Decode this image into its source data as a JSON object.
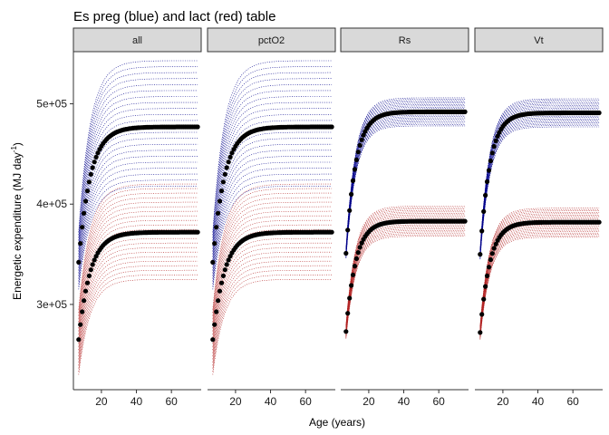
{
  "title": "Es preg (blue) and lact (red) table",
  "xlabel": "Age (years)",
  "ylabel_main": "Energetic expenditure (MJ day",
  "ylabel_sup": "-1",
  "ylabel_end": ")",
  "panels": [
    "all",
    "pctO2",
    "Rs",
    "Vt"
  ],
  "colors": {
    "preg_band": "#00008b",
    "lact_band": "#b22222",
    "points": "#000000"
  },
  "chart_data": {
    "type": "scatter",
    "title": "Es preg (blue) and lact (red) table",
    "xlabel": "Age (years)",
    "ylabel": "Energetic expenditure (MJ day-1)",
    "facets": [
      "all",
      "pctO2",
      "Rs",
      "Vt"
    ],
    "xlim": [
      4,
      77
    ],
    "ylim": [
      215000,
      552000
    ],
    "x_ticks": [
      20,
      40,
      60
    ],
    "y_ticks": [
      300000,
      400000,
      500000
    ],
    "y_tick_labels": [
      "3e+05",
      "4e+05",
      "5e+05"
    ],
    "x_range": [
      7,
      75
    ],
    "grid": false,
    "series": [
      {
        "name": "preg",
        "facet": "all",
        "start": 342000,
        "asymptote": 477000,
        "k": 0.15,
        "band_start": [
          315000,
          372000
        ],
        "band_end": [
          418000,
          543000
        ]
      },
      {
        "name": "lact",
        "facet": "all",
        "start": 265000,
        "asymptote": 372000,
        "k": 0.15,
        "band_start": [
          230000,
          295000
        ],
        "band_end": [
          325000,
          420000
        ]
      },
      {
        "name": "preg",
        "facet": "pctO2",
        "start": 342000,
        "asymptote": 477000,
        "k": 0.15,
        "band_start": [
          315000,
          372000
        ],
        "band_end": [
          418000,
          543000
        ]
      },
      {
        "name": "lact",
        "facet": "pctO2",
        "start": 265000,
        "asymptote": 372000,
        "k": 0.15,
        "band_start": [
          230000,
          295000
        ],
        "band_end": [
          325000,
          420000
        ]
      },
      {
        "name": "preg",
        "facet": "Rs",
        "start": 351000,
        "asymptote": 492000,
        "k": 0.18,
        "band_start": [
          346000,
          356000
        ],
        "band_end": [
          478000,
          506000
        ]
      },
      {
        "name": "lact",
        "facet": "Rs",
        "start": 273000,
        "asymptote": 383000,
        "k": 0.18,
        "band_start": [
          266000,
          280000
        ],
        "band_end": [
          368000,
          398000
        ]
      },
      {
        "name": "preg",
        "facet": "Vt",
        "start": 350000,
        "asymptote": 491000,
        "k": 0.18,
        "band_start": [
          345000,
          355000
        ],
        "band_end": [
          477000,
          505000
        ]
      },
      {
        "name": "lact",
        "facet": "Vt",
        "start": 272000,
        "asymptote": 382000,
        "k": 0.18,
        "band_start": [
          265000,
          279000
        ],
        "band_end": [
          367000,
          396000
        ]
      }
    ]
  }
}
